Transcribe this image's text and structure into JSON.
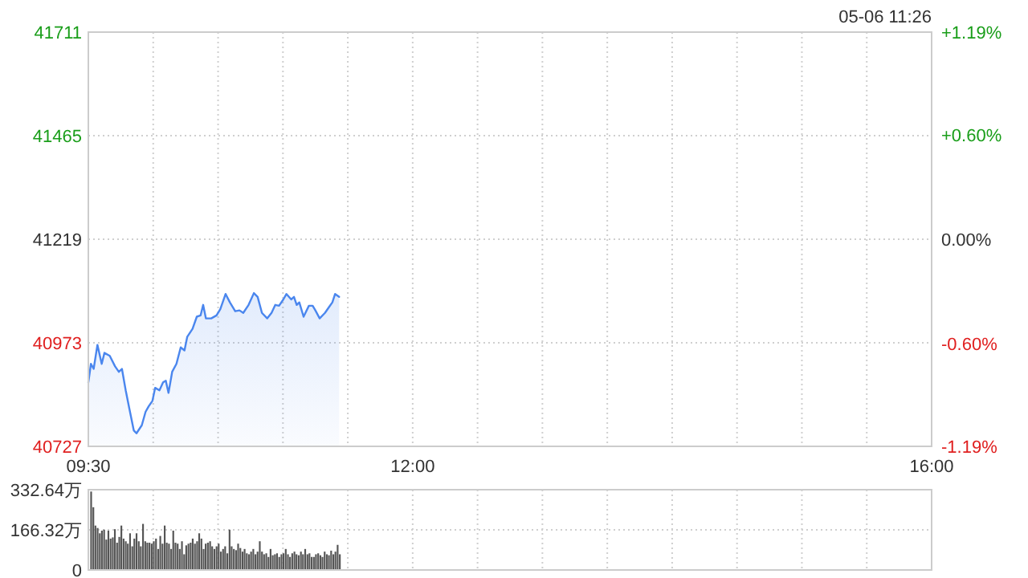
{
  "chart_data": [
    {
      "type": "area",
      "color": "#4a86ee",
      "grid": true,
      "annotations": [
        "05-06 11:26"
      ],
      "xlim": [
        9.5,
        16
      ],
      "xticks": [
        {
          "value": 9.5,
          "label": "09:30"
        },
        {
          "value": 10,
          "label": null
        },
        {
          "value": 10.5,
          "label": null
        },
        {
          "value": 11,
          "label": null
        },
        {
          "value": 11.5,
          "label": null
        },
        {
          "value": 12,
          "label": "12:00"
        },
        {
          "value": 12.5,
          "label": null
        },
        {
          "value": 13,
          "label": null
        },
        {
          "value": 13.5,
          "label": null
        },
        {
          "value": 14,
          "label": null
        },
        {
          "value": 14.5,
          "label": null
        },
        {
          "value": 15,
          "label": null
        },
        {
          "value": 15.5,
          "label": null
        },
        {
          "value": 16,
          "label": "16:00"
        }
      ],
      "ylim": [
        40727,
        41711
      ],
      "yticks": [
        40727,
        40973,
        41219,
        41465,
        41711
      ],
      "y2lim": [
        -1.19,
        1.19
      ],
      "y2ticks": [
        {
          "value": -1.19,
          "label": "-1.19%"
        },
        {
          "value": -0.6,
          "label": "-0.60%"
        },
        {
          "value": 0,
          "label": "0.00%"
        },
        {
          "value": 0.6,
          "label": "+0.60%"
        },
        {
          "value": 1.19,
          "label": "+1.19%"
        }
      ],
      "x": [
        9.5,
        9.52,
        9.541,
        9.57,
        9.603,
        9.624,
        9.665,
        9.706,
        9.735,
        9.759,
        9.788,
        9.817,
        9.85,
        9.871,
        9.912,
        9.941,
        9.965,
        9.994,
        10.015,
        10.048,
        10.076,
        10.097,
        10.118,
        10.146,
        10.179,
        10.212,
        10.241,
        10.262,
        10.303,
        10.336,
        10.365,
        10.385,
        10.406,
        10.447,
        10.488,
        10.517,
        10.558,
        10.591,
        10.632,
        10.665,
        10.694,
        10.735,
        10.776,
        10.805,
        10.838,
        10.879,
        10.912,
        10.941,
        10.97,
        11.003,
        11.027,
        11.064,
        11.085,
        11.106,
        11.126,
        11.159,
        11.2,
        11.229,
        11.25,
        11.283,
        11.324,
        11.353,
        11.381,
        11.402,
        11.433
      ],
      "values": [
        40879,
        40923,
        40911,
        40968,
        40923,
        40949,
        40942,
        40917,
        40904,
        40911,
        40860,
        40815,
        40765,
        40758,
        40777,
        40809,
        40822,
        40835,
        40866,
        40860,
        40879,
        40883,
        40854,
        40904,
        40923,
        40962,
        40955,
        40987,
        41006,
        41035,
        41038,
        41063,
        41031,
        41031,
        41038,
        41053,
        41089,
        41069,
        41048,
        41050,
        41044,
        41063,
        41091,
        41082,
        41044,
        41031,
        41044,
        41063,
        41061,
        41076,
        41089,
        41076,
        41082,
        41063,
        41069,
        41035,
        41061,
        41061,
        41050,
        41031,
        41044,
        41057,
        41069,
        41089,
        41082
      ]
    },
    {
      "type": "bar",
      "color": "#555555",
      "grid": true,
      "tick_labels": "y",
      "xlim": [
        9.5,
        16
      ],
      "xticks": [
        {
          "value": 10,
          "label": null
        },
        {
          "value": 10.5,
          "label": null
        },
        {
          "value": 11,
          "label": null
        },
        {
          "value": 11.5,
          "label": null
        },
        {
          "value": 12,
          "label": null
        },
        {
          "value": 12.5,
          "label": null
        },
        {
          "value": 13,
          "label": null
        },
        {
          "value": 13.5,
          "label": null
        },
        {
          "value": 14,
          "label": null
        },
        {
          "value": 14.5,
          "label": null
        },
        {
          "value": 15,
          "label": null
        },
        {
          "value": 15.5,
          "label": null
        }
      ],
      "ylim": [
        0,
        332.64
      ],
      "yticks": [
        0,
        {
          "value": 166.32,
          "label": "166.32万"
        },
        {
          "value": 332.64,
          "label": "332.64万"
        }
      ],
      "x": [
        9.5,
        9.517,
        9.533,
        9.55,
        9.567,
        9.583,
        9.6,
        9.617,
        9.633,
        9.65,
        9.667,
        9.683,
        9.7,
        9.717,
        9.733,
        9.75,
        9.767,
        9.783,
        9.8,
        9.817,
        9.833,
        9.85,
        9.867,
        9.883,
        9.9,
        9.917,
        9.933,
        9.95,
        9.967,
        9.983,
        10.0,
        10.017,
        10.033,
        10.05,
        10.067,
        10.083,
        10.1,
        10.117,
        10.133,
        10.15,
        10.167,
        10.183,
        10.2,
        10.217,
        10.233,
        10.25,
        10.267,
        10.283,
        10.3,
        10.317,
        10.333,
        10.35,
        10.367,
        10.383,
        10.4,
        10.417,
        10.433,
        10.45,
        10.467,
        10.483,
        10.5,
        10.517,
        10.533,
        10.55,
        10.567,
        10.583,
        10.6,
        10.617,
        10.633,
        10.65,
        10.667,
        10.683,
        10.7,
        10.717,
        10.733,
        10.75,
        10.767,
        10.783,
        10.8,
        10.817,
        10.833,
        10.85,
        10.867,
        10.883,
        10.9,
        10.917,
        10.933,
        10.95,
        10.967,
        10.983,
        11.0,
        11.017,
        11.033,
        11.05,
        11.067,
        11.083,
        11.1,
        11.117,
        11.133,
        11.15,
        11.167,
        11.183,
        11.2,
        11.217,
        11.233,
        11.25,
        11.267,
        11.283,
        11.3,
        11.317,
        11.333,
        11.35,
        11.367,
        11.383,
        11.4,
        11.417
      ],
      "values": [
        325,
        260,
        184,
        174,
        152,
        163,
        167,
        126,
        163,
        130,
        135,
        169,
        113,
        137,
        184,
        130,
        119,
        109,
        152,
        98,
        130,
        152,
        119,
        98,
        191,
        119,
        113,
        113,
        109,
        119,
        130,
        87,
        141,
        109,
        184,
        113,
        109,
        87,
        163,
        113,
        109,
        87,
        119,
        65,
        102,
        109,
        113,
        130,
        109,
        119,
        152,
        130,
        87,
        109,
        113,
        119,
        98,
        87,
        98,
        109,
        76,
        87,
        98,
        69,
        167,
        98,
        87,
        82,
        109,
        91,
        76,
        87,
        69,
        65,
        76,
        87,
        65,
        76,
        119,
        76,
        65,
        69,
        54,
        87,
        61,
        65,
        69,
        54,
        65,
        69,
        87,
        65,
        54,
        69,
        76,
        65,
        61,
        76,
        65,
        87,
        65,
        69,
        54,
        54,
        65,
        69,
        61,
        54,
        76,
        65,
        61,
        80,
        65,
        76,
        104,
        65
      ]
    }
  ]
}
